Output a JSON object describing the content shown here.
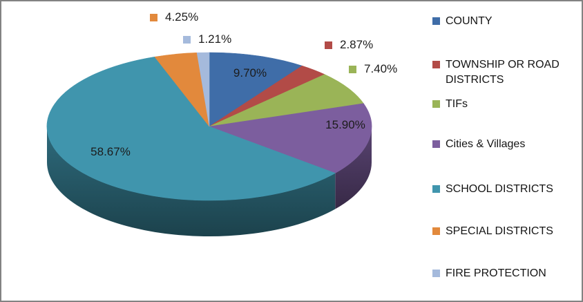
{
  "chart_data": {
    "type": "pie",
    "style": "3d",
    "direction": "clockwise",
    "start_angle_deg": 0,
    "title": "",
    "legend": {
      "position": "right"
    },
    "slices": [
      {
        "label": "COUNTY",
        "value_pct": 9.7,
        "display": "9.70%",
        "color": "#3F6DA8",
        "label_placement": "inside"
      },
      {
        "label": "TOWNSHIP OR ROAD DISTRICTS",
        "value_pct": 2.87,
        "display": "2.87%",
        "color": "#B24B47",
        "label_placement": "outside"
      },
      {
        "label": "TIFs",
        "value_pct": 7.4,
        "display": "7.40%",
        "color": "#9AB457",
        "label_placement": "outside"
      },
      {
        "label": "Cities & Villages",
        "value_pct": 15.9,
        "display": "15.90%",
        "color": "#7C5E9E",
        "label_placement": "inside"
      },
      {
        "label": "SCHOOL DISTRICTS",
        "value_pct": 58.67,
        "display": "58.67%",
        "color": "#4095AD",
        "label_placement": "inside"
      },
      {
        "label": "SPECIAL DISTRICTS",
        "value_pct": 4.25,
        "display": "4.25%",
        "color": "#E2893C",
        "label_placement": "outside"
      },
      {
        "label": "FIRE PROTECTION",
        "value_pct": 1.21,
        "display": "1.21%",
        "color": "#A5BADC",
        "label_placement": "outside"
      }
    ],
    "colors": {
      "label_text": "#1C1C1C",
      "legend_text": "#141414",
      "frame_border": "#828282",
      "background": "#FFFFFF"
    }
  }
}
